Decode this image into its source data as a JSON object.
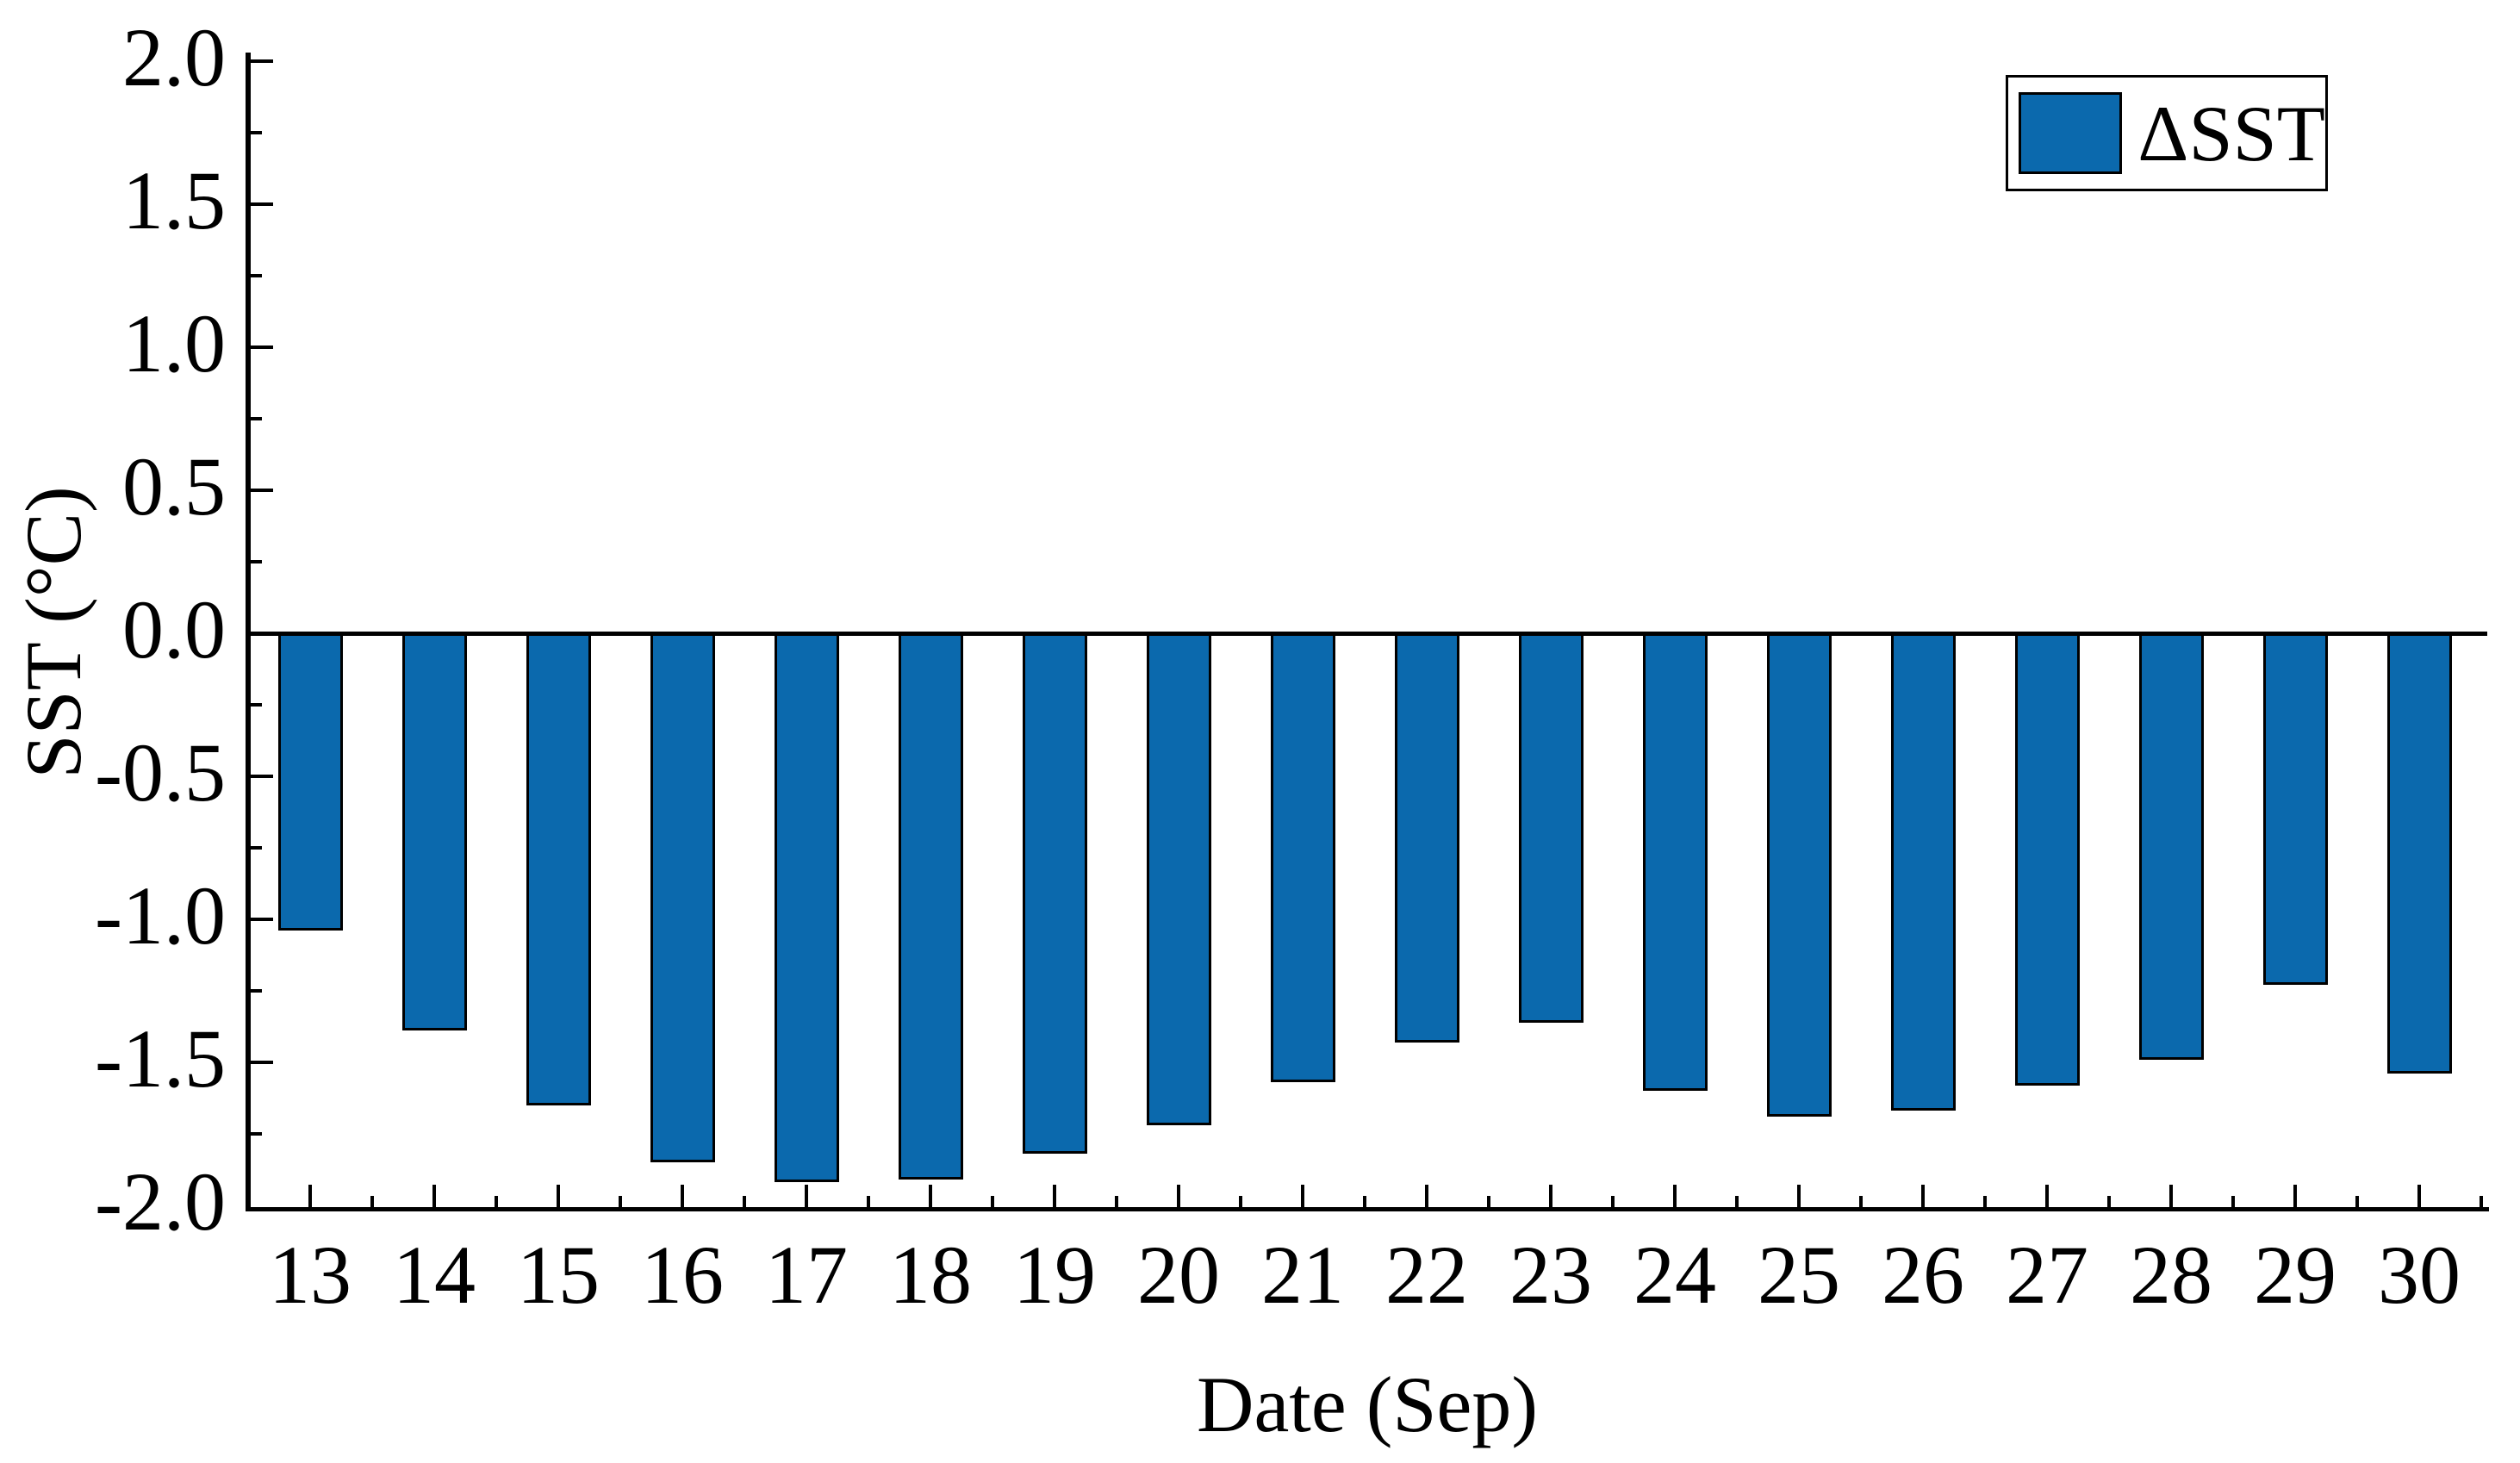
{
  "chart_data": {
    "type": "bar",
    "title": "",
    "xlabel": "Date (Sep)",
    "ylabel": "SST (°C)",
    "categories": [
      "13",
      "14",
      "15",
      "16",
      "17",
      "18",
      "19",
      "20",
      "21",
      "22",
      "23",
      "24",
      "25",
      "26",
      "27",
      "28",
      "29",
      "30"
    ],
    "series": [
      {
        "name": "ΔSST",
        "color": "#0b69ad",
        "values": [
          -1.04,
          -1.39,
          -1.65,
          -1.85,
          -1.92,
          -1.91,
          -1.82,
          -1.72,
          -1.57,
          -1.43,
          -1.36,
          -1.6,
          -1.69,
          -1.67,
          -1.58,
          -1.49,
          -1.23,
          -1.54
        ]
      }
    ],
    "ylim": [
      -2.0,
      2.0
    ],
    "yticks": [
      {
        "v": 2.0,
        "label": "2.0"
      },
      {
        "v": 1.5,
        "label": "1.5"
      },
      {
        "v": 1.0,
        "label": "1.0"
      },
      {
        "v": 0.5,
        "label": "0.5"
      },
      {
        "v": 0.0,
        "label": "0.0"
      },
      {
        "v": -0.5,
        "label": "-0.5"
      },
      {
        "v": -1.0,
        "label": "-1.0"
      },
      {
        "v": -1.5,
        "label": "-1.5"
      },
      {
        "v": -2.0,
        "label": "-2.0"
      }
    ],
    "yminor": [
      1.75,
      1.25,
      0.75,
      0.25,
      -0.25,
      -0.75,
      -1.25,
      -1.75
    ],
    "baseline": 0,
    "grid": false,
    "legend": {
      "position": "top-right",
      "entries": [
        "ΔSST"
      ]
    }
  },
  "colors": {
    "bar": "#0b69ad",
    "axis": "#000000",
    "text": "#000000",
    "background": "#ffffff"
  }
}
